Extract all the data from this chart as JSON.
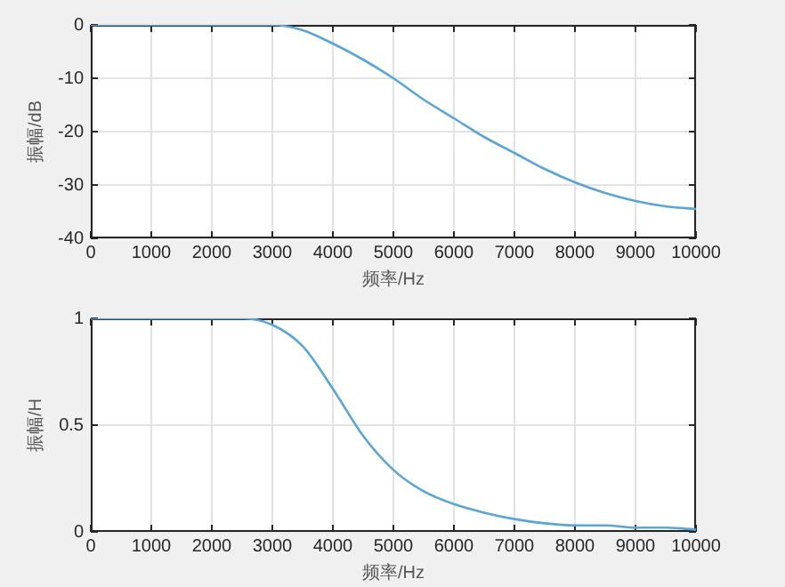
{
  "chart_data": [
    {
      "type": "line",
      "xlabel": "频率/Hz",
      "ylabel": "振幅/dB",
      "x": [
        0,
        500,
        1000,
        1500,
        2000,
        2500,
        3000,
        3500,
        4000,
        4500,
        5000,
        5500,
        6000,
        6500,
        7000,
        7500,
        8000,
        8500,
        9000,
        9500,
        10000
      ],
      "series": [
        {
          "color": "#5aa5d6",
          "values": [
            0,
            0,
            0,
            0,
            0,
            0,
            0,
            -1,
            -3.5,
            -6.5,
            -10,
            -14,
            -17.5,
            -21,
            -24,
            -27,
            -29.5,
            -31.5,
            -33,
            -34,
            -34.5
          ]
        }
      ],
      "xlim": [
        0,
        10000
      ],
      "xticks": [
        0,
        1000,
        2000,
        3000,
        4000,
        5000,
        6000,
        7000,
        8000,
        9000,
        10000
      ],
      "ylim": [
        -40,
        0
      ],
      "yticks": [
        -40,
        -30,
        -20,
        -10,
        0
      ],
      "grid": true,
      "legend": false,
      "marker": "none",
      "line_style": "solid"
    },
    {
      "type": "line",
      "xlabel": "频率/Hz",
      "ylabel": "振幅/H",
      "x": [
        0,
        500,
        1000,
        1500,
        2000,
        2500,
        3000,
        3500,
        4000,
        4500,
        5000,
        5500,
        6000,
        6500,
        7000,
        7500,
        8000,
        8500,
        9000,
        9500,
        10000
      ],
      "series": [
        {
          "color": "#5aa5d6",
          "values": [
            1,
            1,
            1,
            1,
            1,
            1,
            0.97,
            0.87,
            0.67,
            0.45,
            0.29,
            0.19,
            0.13,
            0.09,
            0.06,
            0.04,
            0.03,
            0.03,
            0.02,
            0.02,
            0.01
          ]
        }
      ],
      "xlim": [
        0,
        10000
      ],
      "xticks": [
        0,
        1000,
        2000,
        3000,
        4000,
        5000,
        6000,
        7000,
        8000,
        9000,
        10000
      ],
      "ylim": [
        0,
        1
      ],
      "yticks": [
        0,
        0.5,
        1
      ],
      "grid": true,
      "legend": false,
      "marker": "none",
      "line_style": "solid"
    }
  ]
}
